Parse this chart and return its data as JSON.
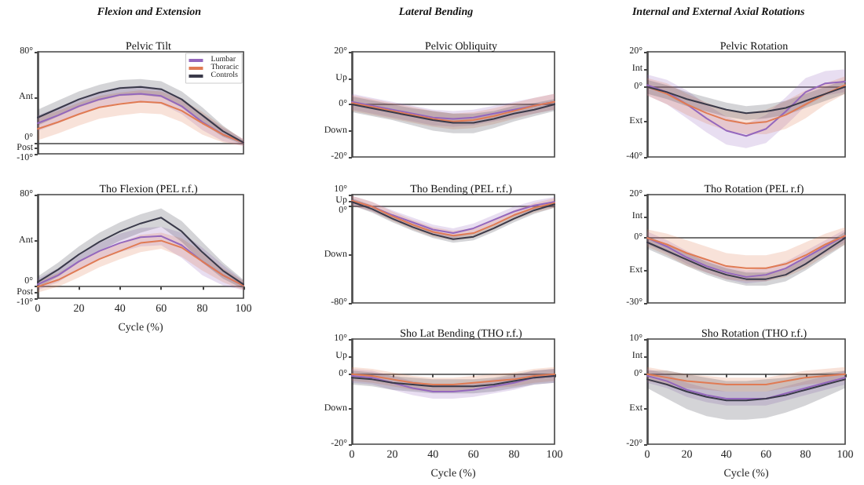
{
  "chart_data": [
    {
      "type": "line",
      "title": "Pelvic Tilt",
      "annotations": [
        "Flexion and Extension"
      ],
      "x": [
        0,
        10,
        20,
        30,
        40,
        50,
        60,
        70,
        80,
        90,
        100
      ],
      "xlim": [
        0,
        100
      ],
      "xticks": [
        0,
        20,
        40,
        60,
        80,
        100
      ],
      "ylim": [
        -10,
        80
      ],
      "yticks": [
        {
          "value": -10,
          "label": "-10°"
        },
        {
          "value": -5,
          "label": "Post"
        },
        {
          "value": 0,
          "label": "0°"
        },
        {
          "value": 40,
          "label": "Ant"
        },
        {
          "value": 80,
          "label": "80°"
        }
      ],
      "tick_labels": "y",
      "legend": "top right",
      "marker": "none",
      "line_style": "solid",
      "series": [
        {
          "name": "Lumbar",
          "color": "#9467bd",
          "values": [
            17,
            24,
            32,
            38,
            42,
            43,
            41,
            32,
            18,
            7,
            0
          ],
          "lower": [
            10,
            17,
            25,
            31,
            35,
            36,
            34,
            25,
            11,
            1,
            -3
          ],
          "upper": [
            24,
            31,
            39,
            45,
            49,
            50,
            48,
            39,
            25,
            13,
            3
          ]
        },
        {
          "name": "Thoracic",
          "color": "#e07b54",
          "values": [
            12,
            18,
            25,
            31,
            34,
            36,
            35,
            28,
            17,
            7,
            0
          ],
          "lower": [
            2,
            8,
            15,
            21,
            24,
            26,
            25,
            18,
            7,
            0,
            -3
          ],
          "upper": [
            22,
            28,
            35,
            41,
            44,
            46,
            45,
            38,
            27,
            14,
            3
          ]
        },
        {
          "name": "Controls",
          "color": "#3a3a4a",
          "values": [
            22,
            30,
            38,
            44,
            48,
            49,
            47,
            38,
            24,
            10,
            0
          ],
          "lower": [
            15,
            23,
            31,
            37,
            41,
            42,
            40,
            31,
            17,
            5,
            -2
          ],
          "upper": [
            29,
            37,
            45,
            51,
            55,
            56,
            54,
            45,
            31,
            15,
            2
          ]
        }
      ]
    },
    {
      "type": "line",
      "title": "Pelvic Obliquity",
      "annotations": [
        "Lateral Bending"
      ],
      "x": [
        0,
        10,
        20,
        30,
        40,
        50,
        60,
        70,
        80,
        90,
        100
      ],
      "xlim": [
        0,
        100
      ],
      "xticks": [
        0,
        20,
        40,
        60,
        80,
        100
      ],
      "ylim": [
        -20,
        20
      ],
      "yticks": [
        {
          "value": -20,
          "label": "-20°"
        },
        {
          "value": -10,
          "label": "Down"
        },
        {
          "value": 0,
          "label": "0°"
        },
        {
          "value": 10,
          "label": "Up"
        },
        {
          "value": 20,
          "label": "20°"
        }
      ],
      "tick_labels": "y",
      "marker": "none",
      "line_style": "solid",
      "series": [
        {
          "color": "#9467bd",
          "values": [
            1,
            -0.5,
            -2,
            -3.5,
            -5,
            -5.5,
            -5,
            -3.5,
            -2,
            -0.5,
            1
          ],
          "lower": [
            -2,
            -3.5,
            -5,
            -6.5,
            -8,
            -8.5,
            -8,
            -6.5,
            -5,
            -3.5,
            -2
          ],
          "upper": [
            4,
            2.5,
            1,
            -0.5,
            -2,
            -2.5,
            -2,
            -0.5,
            1,
            2.5,
            4
          ]
        },
        {
          "color": "#e07b54",
          "values": [
            0.5,
            -1,
            -2.5,
            -4,
            -5.5,
            -6.5,
            -6,
            -4.5,
            -2.5,
            -0.5,
            1
          ],
          "lower": [
            -2.5,
            -4,
            -5.5,
            -7,
            -8.5,
            -9.5,
            -9,
            -7.5,
            -5.5,
            -3.5,
            -2
          ],
          "upper": [
            3.5,
            2,
            0.5,
            -1,
            -2.5,
            -3.5,
            -3,
            -1.5,
            0.5,
            2.5,
            4
          ]
        },
        {
          "color": "#3a3a4a",
          "values": [
            0,
            -1.5,
            -3,
            -4.5,
            -6,
            -7,
            -7,
            -5.5,
            -3.5,
            -2,
            0
          ],
          "lower": [
            -3,
            -4.5,
            -6,
            -8,
            -10,
            -11,
            -11,
            -9,
            -6.5,
            -4.5,
            -2.5
          ],
          "upper": [
            3,
            1.5,
            0,
            -1.5,
            -2.5,
            -3.5,
            -3.5,
            -2.5,
            -0.5,
            0.5,
            2
          ]
        }
      ]
    },
    {
      "type": "line",
      "title": "Pelvic Rotation",
      "annotations": [
        "Internal and External Axial Rotations"
      ],
      "x": [
        0,
        10,
        20,
        30,
        40,
        50,
        60,
        70,
        80,
        90,
        100
      ],
      "xlim": [
        0,
        100
      ],
      "xticks": [
        0,
        20,
        40,
        60,
        80,
        100
      ],
      "ylim": [
        -40,
        20
      ],
      "yticks": [
        {
          "value": -40,
          "label": "-40°"
        },
        {
          "value": -20,
          "label": "Ext"
        },
        {
          "value": 0,
          "label": "0°"
        },
        {
          "value": 10,
          "label": "Int"
        },
        {
          "value": 20,
          "label": "20°"
        }
      ],
      "tick_labels": "y",
      "marker": "none",
      "line_style": "solid",
      "series": [
        {
          "color": "#9467bd",
          "values": [
            1,
            -3,
            -10,
            -18,
            -25,
            -28,
            -24,
            -14,
            -3,
            2,
            3
          ],
          "lower": [
            -5,
            -10,
            -18,
            -26,
            -33,
            -35,
            -32,
            -22,
            -11,
            -5,
            -3
          ],
          "upper": [
            7,
            4,
            -2,
            -10,
            -17,
            -21,
            -16,
            -6,
            5,
            9,
            10
          ]
        },
        {
          "color": "#e07b54",
          "values": [
            0,
            -4,
            -10,
            -15,
            -19,
            -21,
            -20,
            -16,
            -10,
            -4,
            1
          ],
          "lower": [
            -5,
            -10,
            -16,
            -21,
            -25,
            -27,
            -27,
            -24,
            -18,
            -10,
            -4
          ],
          "upper": [
            5,
            2,
            -4,
            -9,
            -13,
            -15,
            -13,
            -8,
            -2,
            2,
            6
          ]
        },
        {
          "color": "#3a3a4a",
          "values": [
            0,
            -3,
            -7,
            -10,
            -13,
            -15,
            -14,
            -12,
            -8,
            -4,
            0
          ],
          "lower": [
            -4,
            -7,
            -11,
            -14,
            -17,
            -19,
            -18,
            -16,
            -12,
            -8,
            -4
          ],
          "upper": [
            4,
            1,
            -3,
            -6,
            -9,
            -11,
            -10,
            -8,
            -4,
            0,
            4
          ]
        }
      ]
    },
    {
      "type": "line",
      "title": "Tho Flexion (PEL r.f.)",
      "xlabel": "Cycle (%)",
      "x": [
        0,
        10,
        20,
        30,
        40,
        50,
        60,
        70,
        80,
        90,
        100
      ],
      "xlim": [
        0,
        100
      ],
      "xticks": [
        0,
        20,
        40,
        60,
        80,
        100
      ],
      "ylim": [
        -10,
        80
      ],
      "yticks": [
        {
          "value": -10,
          "label": "-10°"
        },
        {
          "value": -5,
          "label": "Post"
        },
        {
          "value": 0,
          "label": "0°"
        },
        {
          "value": 40,
          "label": "Ant"
        },
        {
          "value": 80,
          "label": "80°"
        }
      ],
      "marker": "none",
      "line_style": "solid",
      "series": [
        {
          "color": "#9467bd",
          "values": [
            2,
            10,
            22,
            31,
            38,
            43,
            44,
            36,
            22,
            10,
            1
          ],
          "lower": [
            -3,
            4,
            15,
            24,
            30,
            35,
            36,
            25,
            10,
            1,
            -3
          ],
          "upper": [
            7,
            16,
            29,
            38,
            46,
            51,
            52,
            47,
            34,
            19,
            5
          ]
        },
        {
          "color": "#e07b54",
          "values": [
            0,
            6,
            15,
            24,
            31,
            38,
            40,
            34,
            22,
            10,
            1
          ],
          "lower": [
            -5,
            0,
            8,
            17,
            24,
            30,
            33,
            26,
            14,
            4,
            -3
          ],
          "upper": [
            5,
            12,
            22,
            31,
            38,
            45,
            47,
            42,
            30,
            16,
            5
          ]
        },
        {
          "color": "#3a3a4a",
          "values": [
            4,
            15,
            28,
            39,
            48,
            55,
            60,
            48,
            30,
            14,
            2
          ],
          "lower": [
            -1,
            9,
            21,
            31,
            40,
            47,
            52,
            39,
            21,
            7,
            -2
          ],
          "upper": [
            9,
            21,
            35,
            47,
            56,
            63,
            68,
            57,
            39,
            21,
            6
          ]
        }
      ]
    },
    {
      "type": "line",
      "title": "Tho Bending (PEL r.f.)",
      "x": [
        0,
        10,
        20,
        30,
        40,
        50,
        60,
        70,
        80,
        90,
        100
      ],
      "xlim": [
        0,
        100
      ],
      "xticks": [
        0,
        20,
        40,
        60,
        80,
        100
      ],
      "ylim": [
        -80,
        10
      ],
      "yticks": [
        {
          "value": -80,
          "label": "-80°"
        },
        {
          "value": -40,
          "label": "Down"
        },
        {
          "value": 0,
          "label": "0°"
        },
        {
          "value": 5,
          "label": "Up"
        },
        {
          "value": 10,
          "label": "10°"
        }
      ],
      "tick_labels": "y",
      "marker": "none",
      "line_style": "solid",
      "series": [
        {
          "color": "#9467bd",
          "values": [
            5,
            0,
            -7,
            -13,
            -19,
            -22,
            -18,
            -11,
            -4,
            1,
            4
          ],
          "lower": [
            1,
            -4,
            -11,
            -17,
            -23,
            -26,
            -22,
            -15,
            -8,
            -3,
            0
          ],
          "upper": [
            9,
            4,
            -3,
            -9,
            -15,
            -18,
            -14,
            -7,
            0,
            5,
            8
          ]
        },
        {
          "color": "#e07b54",
          "values": [
            5,
            0,
            -8,
            -15,
            -21,
            -24,
            -22,
            -15,
            -7,
            -1,
            3
          ],
          "lower": [
            1,
            -4,
            -12,
            -19,
            -25,
            -28,
            -26,
            -19,
            -11,
            -5,
            -1
          ],
          "upper": [
            9,
            4,
            -4,
            -11,
            -17,
            -20,
            -18,
            -11,
            -3,
            3,
            7
          ]
        },
        {
          "color": "#3a3a4a",
          "values": [
            4,
            -2,
            -10,
            -17,
            -23,
            -27,
            -25,
            -18,
            -10,
            -3,
            2
          ],
          "lower": [
            1,
            -5,
            -13,
            -20,
            -26,
            -30,
            -28,
            -21,
            -13,
            -6,
            -1
          ],
          "upper": [
            7,
            1,
            -7,
            -14,
            -20,
            -24,
            -22,
            -15,
            -7,
            0,
            5
          ]
        }
      ]
    },
    {
      "type": "line",
      "title": "Tho Rotation (PEL r.f)",
      "x": [
        0,
        10,
        20,
        30,
        40,
        50,
        60,
        70,
        80,
        90,
        100
      ],
      "xlim": [
        0,
        100
      ],
      "xticks": [
        0,
        20,
        40,
        60,
        80,
        100
      ],
      "ylim": [
        -30,
        20
      ],
      "yticks": [
        {
          "value": -30,
          "label": "-30°"
        },
        {
          "value": -15,
          "label": "Ext"
        },
        {
          "value": 0,
          "label": "0°"
        },
        {
          "value": 10,
          "label": "Int"
        },
        {
          "value": 20,
          "label": "20°"
        }
      ],
      "tick_labels": "y",
      "marker": "none",
      "line_style": "solid",
      "series": [
        {
          "color": "#9467bd",
          "values": [
            0,
            -4,
            -9,
            -13,
            -16,
            -18,
            -17,
            -14,
            -9,
            -4,
            1
          ],
          "lower": [
            -3,
            -7,
            -12,
            -16,
            -19,
            -21,
            -20,
            -17,
            -12,
            -7,
            -2
          ],
          "upper": [
            3,
            -1,
            -6,
            -10,
            -13,
            -15,
            -14,
            -11,
            -6,
            -1,
            4
          ]
        },
        {
          "color": "#e07b54",
          "values": [
            0,
            -3,
            -7,
            -10,
            -13,
            -14,
            -14,
            -12,
            -8,
            -3,
            1
          ],
          "lower": [
            -4,
            -8,
            -13,
            -16,
            -19,
            -20,
            -20,
            -18,
            -14,
            -8,
            -3
          ],
          "upper": [
            4,
            2,
            -1,
            -4,
            -7,
            -8,
            -8,
            -6,
            -2,
            2,
            5
          ]
        },
        {
          "color": "#3a3a4a",
          "values": [
            -2,
            -6,
            -10,
            -14,
            -17,
            -19,
            -19,
            -17,
            -12,
            -6,
            0
          ],
          "lower": [
            -5,
            -9,
            -13,
            -17,
            -20,
            -22,
            -22,
            -20,
            -15,
            -9,
            -3
          ],
          "upper": [
            1,
            -3,
            -7,
            -11,
            -14,
            -16,
            -16,
            -14,
            -9,
            -3,
            3
          ]
        }
      ]
    },
    {
      "type": "line",
      "title": "Sho Lat Bending (THO r.f.)",
      "xlabel": "Cycle (%)",
      "x": [
        0,
        10,
        20,
        30,
        40,
        50,
        60,
        70,
        80,
        90,
        100
      ],
      "xlim": [
        0,
        100
      ],
      "xticks": [
        0,
        20,
        40,
        60,
        80,
        100
      ],
      "ylim": [
        -20,
        10
      ],
      "yticks": [
        {
          "value": -20,
          "label": "-20°"
        },
        {
          "value": -10,
          "label": "Down"
        },
        {
          "value": 0,
          "label": "0°"
        },
        {
          "value": 5,
          "label": "Up"
        },
        {
          "value": 10,
          "label": "10°"
        }
      ],
      "marker": "none",
      "line_style": "solid",
      "series": [
        {
          "color": "#9467bd",
          "values": [
            -0.5,
            -1,
            -2.5,
            -4,
            -5,
            -5,
            -4.5,
            -3.5,
            -2.5,
            -1,
            -0.5
          ],
          "lower": [
            -2.5,
            -3,
            -4.5,
            -6,
            -7,
            -7,
            -6.5,
            -5.5,
            -4.5,
            -3,
            -2.5
          ],
          "upper": [
            1.5,
            1,
            -0.5,
            -2,
            -3,
            -3,
            -2.5,
            -1.5,
            -0.5,
            1,
            1.5
          ]
        },
        {
          "color": "#e07b54",
          "values": [
            0,
            -0.5,
            -1.5,
            -2.5,
            -3,
            -3,
            -2.5,
            -2,
            -1.5,
            -0.5,
            0
          ],
          "lower": [
            -2,
            -2.5,
            -3.5,
            -4.5,
            -5,
            -5,
            -4.5,
            -4,
            -3.5,
            -2.5,
            -2
          ],
          "upper": [
            2,
            1.5,
            0.5,
            -0.5,
            -1,
            -1,
            -0.5,
            0,
            0.5,
            1.5,
            2
          ]
        },
        {
          "color": "#3a3a4a",
          "values": [
            -1,
            -1.5,
            -2.5,
            -3,
            -3.5,
            -3.5,
            -3.5,
            -3,
            -2,
            -1,
            -0.5
          ],
          "lower": [
            -3,
            -3.5,
            -4.5,
            -5,
            -5.5,
            -5.5,
            -5.5,
            -5,
            -4,
            -3,
            -2.5
          ],
          "upper": [
            1,
            0.5,
            -0.5,
            -1,
            -1.5,
            -1.5,
            -1.5,
            -1,
            0,
            1,
            1.5
          ]
        }
      ]
    },
    {
      "type": "line",
      "title": "Sho Rotation (THO r.f.)",
      "xlabel": "Cycle (%)",
      "x": [
        0,
        10,
        20,
        30,
        40,
        50,
        60,
        70,
        80,
        90,
        100
      ],
      "xlim": [
        0,
        100
      ],
      "xticks": [
        0,
        20,
        40,
        60,
        80,
        100
      ],
      "ylim": [
        -20,
        10
      ],
      "yticks": [
        {
          "value": -20,
          "label": "-20°"
        },
        {
          "value": -10,
          "label": "Ext"
        },
        {
          "value": 0,
          "label": "0°"
        },
        {
          "value": 5,
          "label": "Int"
        },
        {
          "value": 10,
          "label": "10°"
        }
      ],
      "marker": "none",
      "line_style": "solid",
      "series": [
        {
          "color": "#9467bd",
          "values": [
            -0.5,
            -2,
            -4.5,
            -6,
            -7,
            -7,
            -7,
            -5.5,
            -4,
            -2.5,
            -1
          ],
          "lower": [
            -2.5,
            -4,
            -6.5,
            -8,
            -9,
            -9,
            -9,
            -7.5,
            -6,
            -4.5,
            -3
          ],
          "upper": [
            1.5,
            0,
            -2.5,
            -4,
            -5,
            -5,
            -5,
            -3.5,
            -2,
            -0.5,
            1
          ]
        },
        {
          "color": "#e07b54",
          "values": [
            0,
            -1,
            -2,
            -2.5,
            -3,
            -3,
            -3,
            -2,
            -1,
            -0.5,
            0
          ],
          "lower": [
            -2,
            -3,
            -4,
            -4.5,
            -5,
            -5,
            -5,
            -4,
            -3,
            -2.5,
            -2
          ],
          "upper": [
            2,
            1,
            0,
            -0.5,
            -1,
            -1,
            -1,
            0,
            1,
            1.5,
            2
          ]
        },
        {
          "color": "#3a3a4a",
          "values": [
            -1.5,
            -3,
            -5,
            -6.5,
            -7.5,
            -7.5,
            -7,
            -6,
            -4.5,
            -3,
            -1.5
          ],
          "lower": [
            -4,
            -7,
            -10,
            -12,
            -13,
            -13,
            -12.5,
            -11,
            -9,
            -6.5,
            -4
          ],
          "upper": [
            1,
            1,
            0,
            -1,
            -2,
            -2,
            -1.5,
            -1,
            0,
            0.5,
            1
          ]
        }
      ]
    }
  ]
}
